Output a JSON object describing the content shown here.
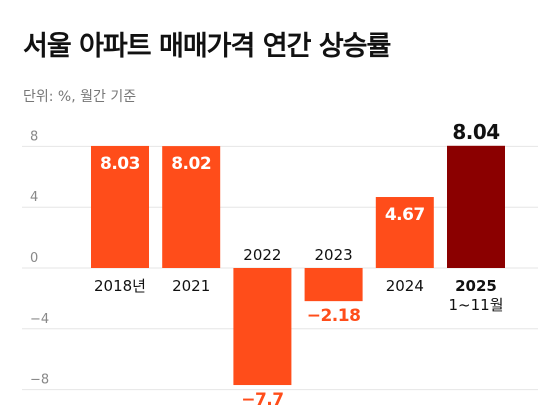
{
  "chart_data": {
    "type": "bar",
    "title": "서울 아파트 매매가격 연간 상승률",
    "subtitle": "단위: %, 월간 기준",
    "categories": [
      "2018년",
      "2021",
      "2022",
      "2023",
      "2024",
      "2025"
    ],
    "category_sublabels": [
      "",
      "",
      "",
      "",
      "",
      "1~11월"
    ],
    "values": [
      8.03,
      8.02,
      -7.7,
      -2.18,
      4.67,
      8.04
    ],
    "value_labels": [
      "8.03",
      "8.02",
      "−7.7",
      "−2.18",
      "4.67",
      "8.04"
    ],
    "yticks": [
      8,
      4,
      0,
      -4,
      -8
    ],
    "ytick_labels": [
      "8",
      "4",
      "0",
      "−4",
      "−8"
    ],
    "ylim": [
      -8.6,
      8.6
    ],
    "grid": true,
    "colors": {
      "bar": "#ff4d1a",
      "highlight": "#8b0000",
      "label_positive": "#ffffff",
      "label_negative": "#ff4d1a",
      "label_outside": "#ff4d1a",
      "grid": "#e6e6e6",
      "axis_text": "#888888"
    },
    "highlight_index": 5
  }
}
